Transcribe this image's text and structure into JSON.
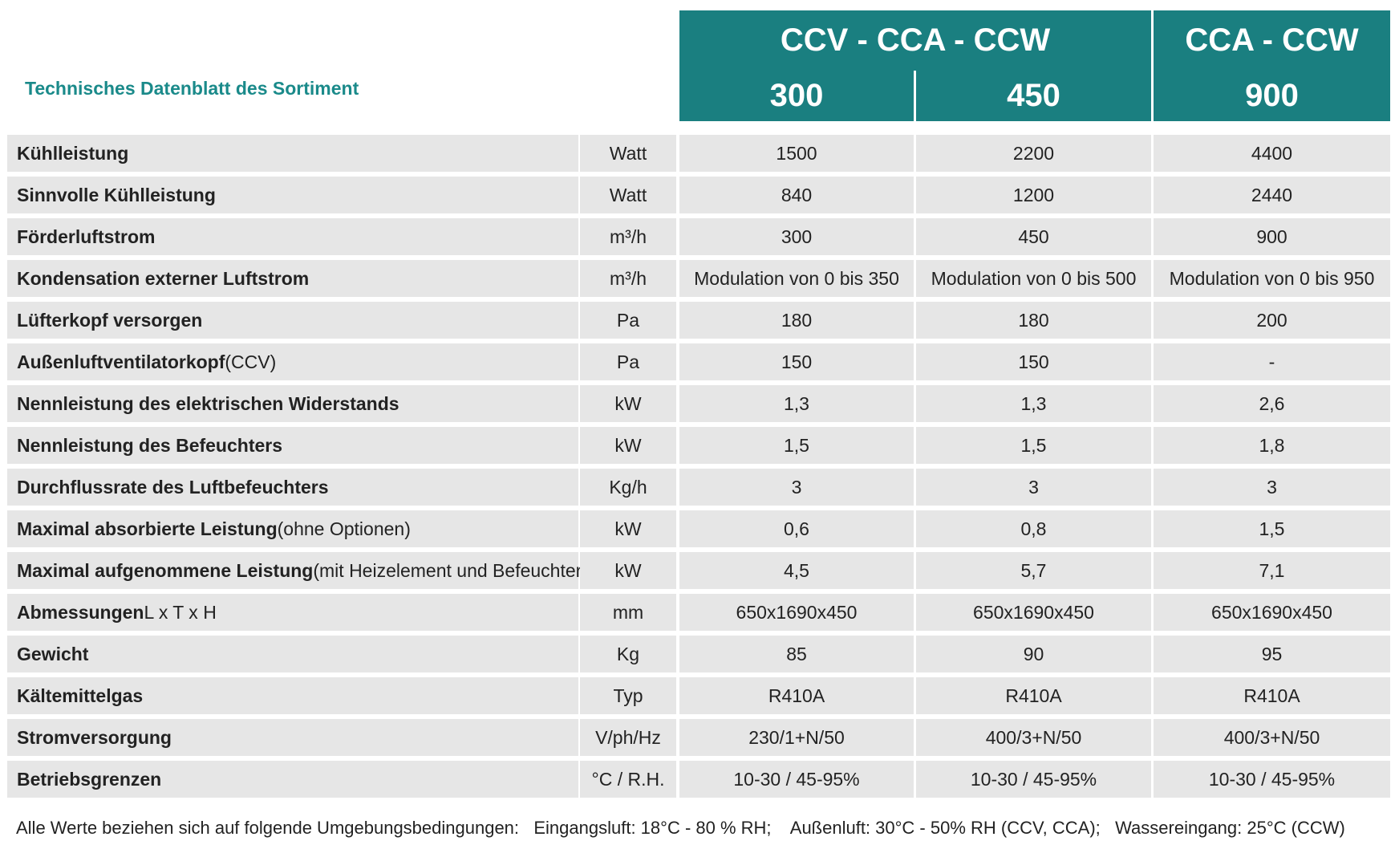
{
  "header": {
    "title": "Technisches Datenblatt des Sortiment",
    "groups": [
      {
        "label": "CCV - CCA - CCW",
        "models": [
          "300",
          "450"
        ]
      },
      {
        "label": "CCA - CCW",
        "models": [
          "900"
        ]
      }
    ]
  },
  "table": {
    "rows": [
      {
        "label": "Kühlleistung",
        "unit": "Watt",
        "values": [
          "1500",
          "2200",
          "4400"
        ]
      },
      {
        "label": "Sinnvolle Kühlleistung",
        "unit": "Watt",
        "values": [
          "840",
          "1200",
          "2440"
        ]
      },
      {
        "label": "Förderluftstrom",
        "unit": "m³/h",
        "values": [
          "300",
          "450",
          "900"
        ]
      },
      {
        "label": "Kondensation externer Luftstrom",
        "unit": "m³/h",
        "values": [
          "Modulation von 0 bis 350",
          "Modulation von 0 bis 500",
          "Modulation von 0 bis 950"
        ]
      },
      {
        "label": "Lüfterkopf versorgen",
        "unit": "Pa",
        "values": [
          "180",
          "180",
          "200"
        ]
      },
      {
        "label": "Außenluftventilatorkopf",
        "note": "(CCV)",
        "unit": "Pa",
        "values": [
          "150",
          "150",
          "-"
        ]
      },
      {
        "label": "Nennleistung des elektrischen Widerstands",
        "unit": "kW",
        "values": [
          "1,3",
          "1,3",
          "2,6"
        ]
      },
      {
        "label": "Nennleistung des Befeuchters",
        "unit": "kW",
        "values": [
          "1,5",
          "1,5",
          "1,8"
        ]
      },
      {
        "label": "Durchflussrate des Luftbefeuchters",
        "unit": "Kg/h",
        "values": [
          "3",
          "3",
          "3"
        ]
      },
      {
        "label": "Maximal absorbierte Leistung",
        "note": "(ohne Optionen)",
        "unit": "kW",
        "values": [
          "0,6",
          "0,8",
          "1,5"
        ]
      },
      {
        "label": "Maximal aufgenommene Leistung",
        "note": "(mit Heizelement und Befeuchter)",
        "unit": "kW",
        "values": [
          "4,5",
          "5,7",
          "7,1"
        ]
      },
      {
        "label": "Abmessungen",
        "note": "L x T x H",
        "unit": "mm",
        "values": [
          "650x1690x450",
          "650x1690x450",
          "650x1690x450"
        ]
      },
      {
        "label": "Gewicht",
        "unit": "Kg",
        "values": [
          "85",
          "90",
          "95"
        ]
      },
      {
        "label": "Kältemittelgas",
        "unit": "Typ",
        "values": [
          "R410A",
          "R410A",
          "R410A"
        ]
      },
      {
        "label": "Stromversorgung",
        "unit": "V/ph/Hz",
        "values": [
          "230/1+N/50",
          "400/3+N/50",
          "400/3+N/50"
        ]
      },
      {
        "label": "Betriebsgrenzen",
        "unit": "°C / R.H.",
        "values": [
          "10-30 / 45-95%",
          "10-30 / 45-95%",
          "10-30 / 45-95%"
        ]
      }
    ]
  },
  "footnote": "Alle Werte beziehen sich auf folgende Umgebungsbedingungen:   Eingangsluft: 18°C - 80 % RH;    Außenluft: 30°C - 50% RH (CCV, CCA);   Wassereingang: 25°C (CCW)"
}
